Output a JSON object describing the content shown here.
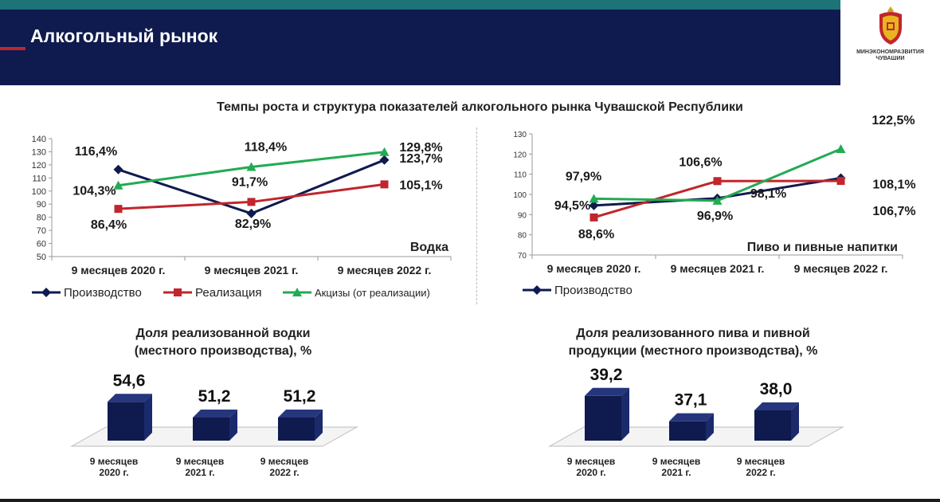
{
  "header": {
    "title": "Алкогольный рынок"
  },
  "logo": {
    "text_line1": "МИНЭКОНОМРАЗВИТИЯ",
    "text_line2": "ЧУВАШИИ"
  },
  "main_title": "Темпы роста и структура показателей алкогольного рынка Чувашской Республики",
  "colors": {
    "header_bg": "#0f1a4e",
    "production": "#0f1a4e",
    "sales": "#c0262c",
    "excise": "#22ab53",
    "bar": "#0f1a4e"
  },
  "vodka_title": "Доля реализованной водки\n(местного производства), %",
  "beer_title": "Доля реализованного пива и пивной\nпродукции (местного производства), %",
  "chart_data": [
    {
      "type": "line",
      "title": "Водка",
      "categories": [
        "9 месяцев 2020 г.",
        "9 месяцев 2021 г.",
        "9 месяцев 2022 г."
      ],
      "ylim": [
        50,
        140
      ],
      "yticks": [
        50,
        60,
        70,
        80,
        90,
        100,
        110,
        120,
        130,
        140
      ],
      "series": [
        {
          "name": "Производство",
          "color": "#0f1a4e",
          "marker": "diamond",
          "values": [
            116.4,
            82.9,
            123.7
          ],
          "labels": [
            "116,4%",
            "82,9%",
            "123,7%"
          ]
        },
        {
          "name": "Реализация",
          "color": "#c0262c",
          "marker": "square",
          "values": [
            86.4,
            91.7,
            105.1
          ],
          "labels": [
            "86,4%",
            "91,7%",
            "105,1%"
          ]
        },
        {
          "name": "Акцизы (от реализации)",
          "color": "#22ab53",
          "marker": "triangle",
          "values": [
            104.3,
            118.4,
            129.8
          ],
          "labels": [
            "104,3%",
            "118,4%",
            "129,8%"
          ]
        }
      ]
    },
    {
      "type": "line",
      "title": "Пиво и пивные напитки",
      "categories": [
        "9 месяцев 2020 г.",
        "9 месяцев 2021 г.",
        "9 месяцев 2022 г."
      ],
      "ylim": [
        70,
        130
      ],
      "yticks": [
        70,
        80,
        90,
        100,
        110,
        120,
        130
      ],
      "series": [
        {
          "name": "Производство",
          "color": "#0f1a4e",
          "marker": "diamond",
          "values": [
            94.5,
            98.1,
            108.1
          ],
          "labels": [
            "94,5%",
            "98,1%",
            "108,1%"
          ]
        },
        {
          "name": "",
          "color": "#c0262c",
          "marker": "square",
          "values": [
            88.6,
            106.6,
            106.7
          ],
          "labels": [
            "88,6%",
            "106,6%",
            "106,7%"
          ]
        },
        {
          "name": "",
          "color": "#22ab53",
          "marker": "triangle",
          "values": [
            97.9,
            96.9,
            122.5
          ],
          "labels": [
            "97,9%",
            "96,9%",
            "122,5%"
          ]
        }
      ]
    },
    {
      "type": "bar",
      "title": "Доля реализованной водки (местного производства), %",
      "categories": [
        "9 месяцев\n2020 г.",
        "9 месяцев\n2021 г.",
        "9 месяцев\n2022 г."
      ],
      "values": [
        54.6,
        51.2,
        51.2
      ],
      "labels": [
        "54,6",
        "51,2",
        "51,2"
      ]
    },
    {
      "type": "bar",
      "title": "Доля реализованного пива и пивной продукции (местного производства), %",
      "categories": [
        "9 месяцев\n2020 г.",
        "9 месяцев\n2021 г.",
        "9 месяцев\n2022 г."
      ],
      "values": [
        39.2,
        37.1,
        38.0
      ],
      "labels": [
        "39,2",
        "37,1",
        "38,0"
      ]
    }
  ]
}
